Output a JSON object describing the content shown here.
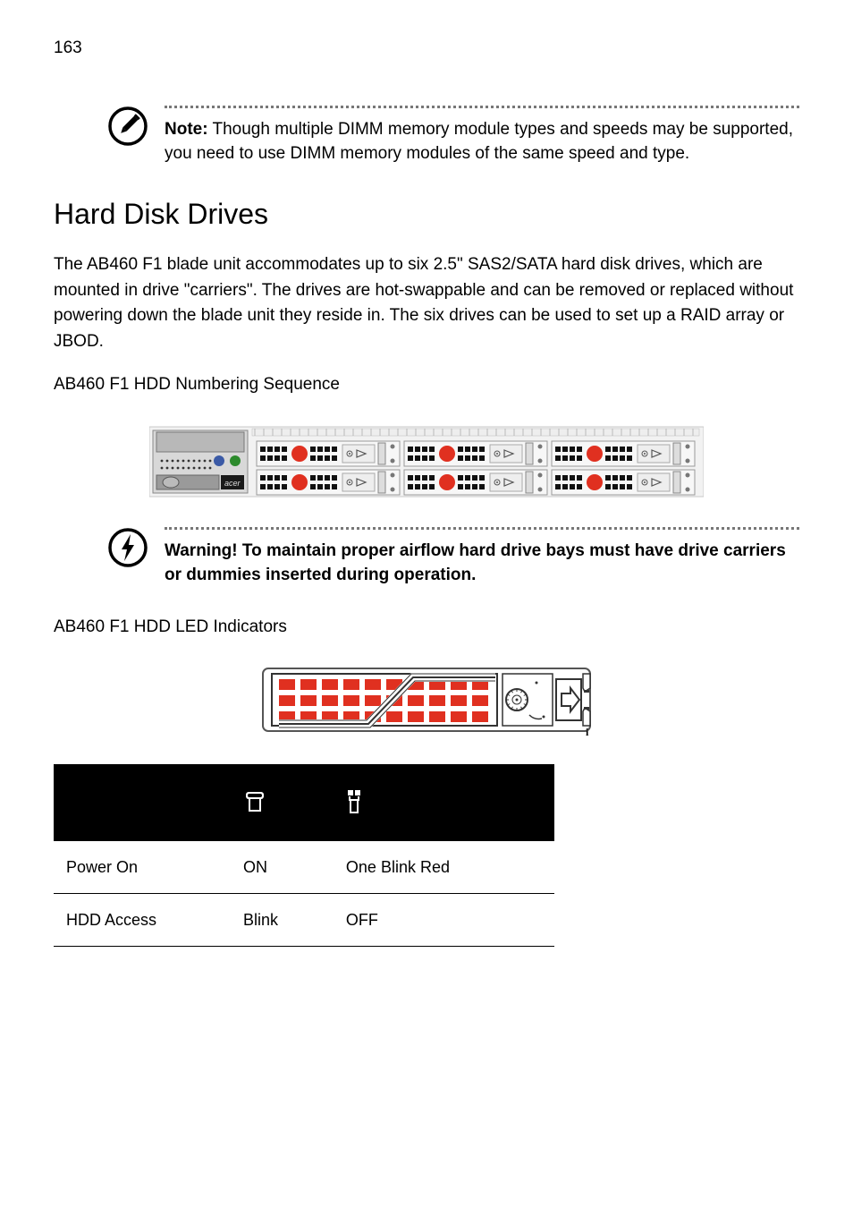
{
  "page_number": "163",
  "note": {
    "label": "Note:",
    "text": "Though multiple DIMM memory module types and speeds may be supported, you need to use DIMM memory modules of the same speed and type."
  },
  "section_title": "Hard Disk Drives",
  "intro_para": "The AB460 F1 blade unit accommodates up to six 2.5\" SAS2/SATA hard disk drives, which are mounted in drive \"carriers\". The drives are hot-swappable and can be removed or replaced without powering down the blade unit they reside in. The six drives can be used to set up a RAID array or JBOD.",
  "numbering_heading": "AB460 F1 HDD Numbering Sequence",
  "warning": {
    "label": "Warning!",
    "text": "To maintain proper airflow hard drive bays must have drive carriers or dummies inserted during operation."
  },
  "led_heading": "AB460 F1 HDD LED Indicators",
  "table": {
    "rows": [
      {
        "state": "Power On",
        "green": "ON",
        "red": "One Blink Red"
      },
      {
        "state": "HDD Access",
        "green": "Blink",
        "red": "OFF"
      }
    ]
  },
  "colors": {
    "red": "#e03020",
    "blue": "#3b5aa6",
    "green": "#2c8a2c",
    "dark": "#1a1a1a",
    "midgrey": "#777777",
    "lightgrey": "#c8c8c8",
    "panelgrey": "#d8d8d8",
    "slotblack": "#111111"
  }
}
